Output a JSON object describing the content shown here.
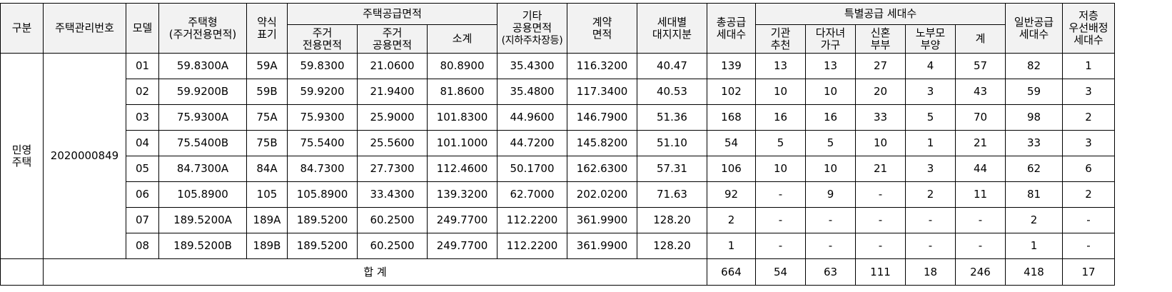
{
  "headers": {
    "category": "구분",
    "management_no": "주택관리번호",
    "model": "모델",
    "housing_type": [
      "주택형",
      "(주거전용면적)"
    ],
    "abbr": [
      "약식",
      "표기"
    ],
    "supply_area": "주택공급면적",
    "res_exclusive": [
      "주거",
      "전용면적"
    ],
    "res_common": [
      "주거",
      "공용면적"
    ],
    "subtotal": "소계",
    "other_common": [
      "기타",
      "공용면적",
      "(지하주차장등)"
    ],
    "contract_area": [
      "계약",
      "면적"
    ],
    "land_share": [
      "세대별",
      "대지지분"
    ],
    "total_supply": [
      "총공급",
      "세대수"
    ],
    "special_supply": "특별공급 세대수",
    "institution": [
      "기관",
      "추천"
    ],
    "multichild": [
      "다자녀",
      "가구"
    ],
    "newlywed": [
      "신혼",
      "부부"
    ],
    "elderly": [
      "노부모",
      "부양"
    ],
    "special_sum": "계",
    "general_supply": [
      "일반공급",
      "세대수"
    ],
    "low_floor": [
      "저층",
      "우선배정",
      "세대수"
    ]
  },
  "category_value": [
    "민영",
    "주택"
  ],
  "management_no_value": "2020000849",
  "rows": [
    [
      "01",
      "59.8300A",
      "59A",
      "59.8300",
      "21.0600",
      "80.8900",
      "35.4300",
      "116.3200",
      "40.47",
      "139",
      "13",
      "13",
      "27",
      "4",
      "57",
      "82",
      "1"
    ],
    [
      "02",
      "59.9200B",
      "59B",
      "59.9200",
      "21.9400",
      "81.8600",
      "35.4800",
      "117.3400",
      "40.53",
      "102",
      "10",
      "10",
      "20",
      "3",
      "43",
      "59",
      "3"
    ],
    [
      "03",
      "75.9300A",
      "75A",
      "75.9300",
      "25.9000",
      "101.8300",
      "44.9600",
      "146.7900",
      "51.36",
      "168",
      "16",
      "16",
      "33",
      "5",
      "70",
      "98",
      "2"
    ],
    [
      "04",
      "75.5400B",
      "75B",
      "75.5400",
      "25.5600",
      "101.1000",
      "44.7200",
      "145.8200",
      "51.10",
      "54",
      "5",
      "5",
      "10",
      "1",
      "21",
      "33",
      "3"
    ],
    [
      "05",
      "84.7300A",
      "84A",
      "84.7300",
      "27.7300",
      "112.4600",
      "50.1700",
      "162.6300",
      "57.31",
      "106",
      "10",
      "10",
      "21",
      "3",
      "44",
      "62",
      "6"
    ],
    [
      "06",
      "105.8900",
      "105",
      "105.8900",
      "33.4300",
      "139.3200",
      "62.7000",
      "202.0200",
      "71.63",
      "92",
      "-",
      "9",
      "-",
      "2",
      "11",
      "81",
      "2"
    ],
    [
      "07",
      "189.5200A",
      "189A",
      "189.5200",
      "60.2500",
      "249.7700",
      "112.2200",
      "361.9900",
      "128.20",
      "2",
      "-",
      "-",
      "-",
      "-",
      "-",
      "2",
      "-"
    ],
    [
      "08",
      "189.5200B",
      "189B",
      "189.5200",
      "60.2500",
      "249.7700",
      "112.2200",
      "361.9900",
      "128.20",
      "1",
      "-",
      "-",
      "-",
      "-",
      "-",
      "1",
      "-"
    ]
  ],
  "total": {
    "label": "합 계",
    "values": [
      "664",
      "54",
      "63",
      "111",
      "18",
      "246",
      "418",
      "17"
    ]
  }
}
